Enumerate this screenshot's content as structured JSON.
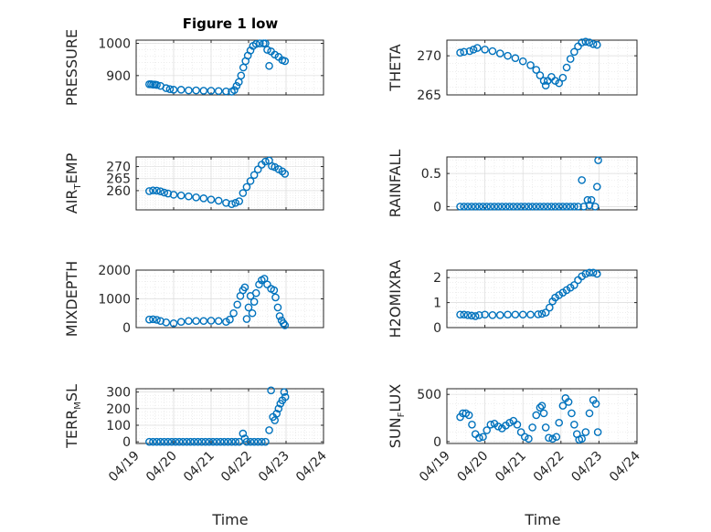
{
  "figure": {
    "title": "Figure 1 low",
    "xlabel": "Time",
    "marker_color": "#0072bd"
  },
  "chart_data": [
    {
      "type": "scatter",
      "ylabel": {
        "main": "PRESSURE",
        "sub": "",
        "tail": ""
      },
      "ylim": [
        840,
        1010
      ],
      "yticks": [
        {
          "v": 900,
          "t": "900"
        },
        {
          "v": 1000,
          "t": "1000"
        }
      ],
      "xlim": [
        0,
        5
      ],
      "xtick_positions": [
        0,
        1,
        2,
        3,
        4,
        5
      ],
      "xticklabels": [],
      "grid": true,
      "points": [
        [
          0.35,
          873
        ],
        [
          0.4,
          873
        ],
        [
          0.45,
          872
        ],
        [
          0.5,
          872
        ],
        [
          0.55,
          871
        ],
        [
          0.65,
          868
        ],
        [
          0.8,
          861
        ],
        [
          0.9,
          858
        ],
        [
          1.0,
          856
        ],
        [
          1.2,
          856
        ],
        [
          1.4,
          854
        ],
        [
          1.6,
          854
        ],
        [
          1.8,
          853
        ],
        [
          2.0,
          853
        ],
        [
          2.2,
          852
        ],
        [
          2.4,
          851
        ],
        [
          2.55,
          850
        ],
        [
          2.62,
          855
        ],
        [
          2.68,
          868
        ],
        [
          2.74,
          880
        ],
        [
          2.8,
          900
        ],
        [
          2.86,
          925
        ],
        [
          2.92,
          945
        ],
        [
          2.98,
          962
        ],
        [
          3.05,
          978
        ],
        [
          3.12,
          992
        ],
        [
          3.2,
          998
        ],
        [
          3.3,
          1000
        ],
        [
          3.4,
          1000
        ],
        [
          3.45,
          1000
        ],
        [
          3.5,
          980
        ],
        [
          3.55,
          930
        ],
        [
          3.6,
          975
        ],
        [
          3.7,
          965
        ],
        [
          3.8,
          958
        ],
        [
          3.9,
          948
        ],
        [
          3.97,
          945
        ]
      ]
    },
    {
      "type": "scatter",
      "ylabel": {
        "main": "THETA",
        "sub": "",
        "tail": ""
      },
      "ylim": [
        265,
        272
      ],
      "yticks": [
        {
          "v": 265,
          "t": "265"
        },
        {
          "v": 270,
          "t": "270"
        }
      ],
      "xlim": [
        0,
        5
      ],
      "xtick_positions": [
        0,
        1,
        2,
        3,
        4,
        5
      ],
      "xticklabels": [],
      "grid": true,
      "points": [
        [
          0.35,
          270.4
        ],
        [
          0.45,
          270.5
        ],
        [
          0.6,
          270.6
        ],
        [
          0.7,
          270.8
        ],
        [
          0.8,
          271.0
        ],
        [
          1.0,
          270.8
        ],
        [
          1.2,
          270.6
        ],
        [
          1.4,
          270.3
        ],
        [
          1.6,
          270.0
        ],
        [
          1.8,
          269.7
        ],
        [
          2.0,
          269.3
        ],
        [
          2.2,
          268.8
        ],
        [
          2.35,
          268.2
        ],
        [
          2.45,
          267.5
        ],
        [
          2.55,
          266.8
        ],
        [
          2.6,
          266.2
        ],
        [
          2.65,
          266.8
        ],
        [
          2.75,
          267.3
        ],
        [
          2.85,
          266.8
        ],
        [
          2.95,
          266.5
        ],
        [
          3.05,
          267.2
        ],
        [
          3.15,
          268.5
        ],
        [
          3.25,
          269.6
        ],
        [
          3.35,
          270.5
        ],
        [
          3.45,
          271.2
        ],
        [
          3.55,
          271.7
        ],
        [
          3.65,
          271.8
        ],
        [
          3.75,
          271.7
        ],
        [
          3.85,
          271.5
        ],
        [
          3.95,
          271.4
        ]
      ]
    },
    {
      "type": "scatter",
      "ylabel": {
        "main": "AIR",
        "sub": "T",
        "tail": "EMP"
      },
      "ylim": [
        252,
        274
      ],
      "yticks": [
        {
          "v": 260,
          "t": "260"
        },
        {
          "v": 265,
          "t": "265"
        },
        {
          "v": 270,
          "t": "270"
        }
      ],
      "xlim": [
        0,
        5
      ],
      "xtick_positions": [
        0,
        1,
        2,
        3,
        4,
        5
      ],
      "xticklabels": [],
      "grid": true,
      "points": [
        [
          0.35,
          259.8
        ],
        [
          0.45,
          260.1
        ],
        [
          0.55,
          260.0
        ],
        [
          0.65,
          259.7
        ],
        [
          0.75,
          259.2
        ],
        [
          0.85,
          258.8
        ],
        [
          1.0,
          258.3
        ],
        [
          1.2,
          258.0
        ],
        [
          1.4,
          257.6
        ],
        [
          1.6,
          257.2
        ],
        [
          1.8,
          256.8
        ],
        [
          2.0,
          256.3
        ],
        [
          2.2,
          255.8
        ],
        [
          2.4,
          254.9
        ],
        [
          2.55,
          254.4
        ],
        [
          2.65,
          254.9
        ],
        [
          2.75,
          255.6
        ],
        [
          2.85,
          259.0
        ],
        [
          2.95,
          261.5
        ],
        [
          3.05,
          264.0
        ],
        [
          3.15,
          266.5
        ],
        [
          3.25,
          268.8
        ],
        [
          3.35,
          270.8
        ],
        [
          3.45,
          272.1
        ],
        [
          3.55,
          272.5
        ],
        [
          3.62,
          270.2
        ],
        [
          3.7,
          269.8
        ],
        [
          3.8,
          268.9
        ],
        [
          3.9,
          268.0
        ],
        [
          3.97,
          267.0
        ]
      ]
    },
    {
      "type": "scatter",
      "ylabel": {
        "main": "RAINFALL",
        "sub": "",
        "tail": ""
      },
      "ylim": [
        -0.05,
        0.75
      ],
      "yticks": [
        {
          "v": 0,
          "t": "0"
        },
        {
          "v": 0.5,
          "t": "0.5"
        }
      ],
      "xlim": [
        0,
        5
      ],
      "xtick_positions": [
        0,
        1,
        2,
        3,
        4,
        5
      ],
      "xticklabels": [],
      "grid": true,
      "points": [
        [
          0.35,
          0
        ],
        [
          0.45,
          0
        ],
        [
          0.55,
          0
        ],
        [
          0.65,
          0
        ],
        [
          0.75,
          0
        ],
        [
          0.85,
          0
        ],
        [
          0.95,
          0
        ],
        [
          1.05,
          0
        ],
        [
          1.15,
          0
        ],
        [
          1.25,
          0
        ],
        [
          1.35,
          0
        ],
        [
          1.45,
          0
        ],
        [
          1.55,
          0
        ],
        [
          1.65,
          0
        ],
        [
          1.75,
          0
        ],
        [
          1.85,
          0
        ],
        [
          1.95,
          0
        ],
        [
          2.05,
          0
        ],
        [
          2.15,
          0
        ],
        [
          2.25,
          0
        ],
        [
          2.35,
          0
        ],
        [
          2.45,
          0
        ],
        [
          2.55,
          0
        ],
        [
          2.65,
          0
        ],
        [
          2.75,
          0
        ],
        [
          2.85,
          0
        ],
        [
          2.95,
          0
        ],
        [
          3.05,
          0
        ],
        [
          3.15,
          0
        ],
        [
          3.25,
          0
        ],
        [
          3.35,
          0
        ],
        [
          3.45,
          0
        ],
        [
          3.55,
          0.4
        ],
        [
          3.6,
          0
        ],
        [
          3.7,
          0.1
        ],
        [
          3.75,
          0.02
        ],
        [
          3.8,
          0.1
        ],
        [
          3.9,
          0
        ],
        [
          3.95,
          0.3
        ],
        [
          3.98,
          0.7
        ]
      ]
    },
    {
      "type": "scatter",
      "ylabel": {
        "main": "MIXDEPTH",
        "sub": "",
        "tail": ""
      },
      "ylim": [
        0,
        2000
      ],
      "yticks": [
        {
          "v": 0,
          "t": "0"
        },
        {
          "v": 1000,
          "t": "1000"
        },
        {
          "v": 2000,
          "t": "2000"
        }
      ],
      "xlim": [
        0,
        5
      ],
      "xtick_positions": [
        0,
        1,
        2,
        3,
        4,
        5
      ],
      "xticklabels": [],
      "grid": true,
      "points": [
        [
          0.35,
          280
        ],
        [
          0.45,
          290
        ],
        [
          0.55,
          270
        ],
        [
          0.65,
          230
        ],
        [
          0.8,
          180
        ],
        [
          1.0,
          150
        ],
        [
          1.2,
          200
        ],
        [
          1.4,
          230
        ],
        [
          1.6,
          230
        ],
        [
          1.8,
          230
        ],
        [
          2.0,
          240
        ],
        [
          2.2,
          230
        ],
        [
          2.4,
          200
        ],
        [
          2.5,
          280
        ],
        [
          2.6,
          500
        ],
        [
          2.7,
          800
        ],
        [
          2.78,
          1100
        ],
        [
          2.85,
          1300
        ],
        [
          2.9,
          1400
        ],
        [
          2.95,
          300
        ],
        [
          3.0,
          700
        ],
        [
          3.05,
          1100
        ],
        [
          3.1,
          500
        ],
        [
          3.15,
          900
        ],
        [
          3.2,
          1200
        ],
        [
          3.28,
          1500
        ],
        [
          3.35,
          1650
        ],
        [
          3.42,
          1700
        ],
        [
          3.5,
          1500
        ],
        [
          3.6,
          1350
        ],
        [
          3.68,
          1300
        ],
        [
          3.72,
          1050
        ],
        [
          3.78,
          700
        ],
        [
          3.83,
          400
        ],
        [
          3.88,
          250
        ],
        [
          3.93,
          150
        ],
        [
          3.97,
          80
        ]
      ]
    },
    {
      "type": "scatter",
      "ylabel": {
        "main": "H2OMIXRA",
        "sub": "",
        "tail": ""
      },
      "ylim": [
        0,
        2.3
      ],
      "yticks": [
        {
          "v": 0,
          "t": "0"
        },
        {
          "v": 1,
          "t": "1"
        },
        {
          "v": 2,
          "t": "2"
        }
      ],
      "xlim": [
        0,
        5
      ],
      "xtick_positions": [
        0,
        1,
        2,
        3,
        4,
        5
      ],
      "xticklabels": [],
      "grid": true,
      "points": [
        [
          0.35,
          0.52
        ],
        [
          0.45,
          0.52
        ],
        [
          0.55,
          0.5
        ],
        [
          0.65,
          0.48
        ],
        [
          0.75,
          0.46
        ],
        [
          0.85,
          0.5
        ],
        [
          1.0,
          0.52
        ],
        [
          1.2,
          0.5
        ],
        [
          1.4,
          0.5
        ],
        [
          1.6,
          0.52
        ],
        [
          1.8,
          0.52
        ],
        [
          2.0,
          0.52
        ],
        [
          2.2,
          0.52
        ],
        [
          2.4,
          0.53
        ],
        [
          2.5,
          0.55
        ],
        [
          2.6,
          0.6
        ],
        [
          2.7,
          0.8
        ],
        [
          2.78,
          1.05
        ],
        [
          2.85,
          1.2
        ],
        [
          2.95,
          1.3
        ],
        [
          3.05,
          1.4
        ],
        [
          3.15,
          1.5
        ],
        [
          3.25,
          1.6
        ],
        [
          3.35,
          1.7
        ],
        [
          3.45,
          1.9
        ],
        [
          3.55,
          2.05
        ],
        [
          3.65,
          2.15
        ],
        [
          3.75,
          2.2
        ],
        [
          3.85,
          2.2
        ],
        [
          3.95,
          2.15
        ]
      ]
    },
    {
      "type": "scatter",
      "ylabel": {
        "main": "TERR",
        "sub": "M",
        "tail": "SL"
      },
      "ylim": [
        -10,
        320
      ],
      "yticks": [
        {
          "v": 0,
          "t": "0"
        },
        {
          "v": 100,
          "t": "100"
        },
        {
          "v": 200,
          "t": "200"
        },
        {
          "v": 300,
          "t": "300"
        }
      ],
      "xlim": [
        0,
        5
      ],
      "xtick_positions": [
        0,
        1,
        2,
        3,
        4,
        5
      ],
      "xticklabels": [
        "04/19",
        "04/20",
        "04/21",
        "04/22",
        "04/23",
        "04/24"
      ],
      "grid": true,
      "points": [
        [
          0.35,
          0
        ],
        [
          0.45,
          0
        ],
        [
          0.55,
          0
        ],
        [
          0.65,
          0
        ],
        [
          0.75,
          0
        ],
        [
          0.85,
          0
        ],
        [
          0.95,
          0
        ],
        [
          1.05,
          0
        ],
        [
          1.15,
          0
        ],
        [
          1.25,
          0
        ],
        [
          1.35,
          0
        ],
        [
          1.45,
          0
        ],
        [
          1.55,
          0
        ],
        [
          1.65,
          0
        ],
        [
          1.75,
          0
        ],
        [
          1.85,
          0
        ],
        [
          1.95,
          0
        ],
        [
          2.05,
          0
        ],
        [
          2.15,
          0
        ],
        [
          2.25,
          0
        ],
        [
          2.35,
          0
        ],
        [
          2.45,
          0
        ],
        [
          2.55,
          0
        ],
        [
          2.65,
          0
        ],
        [
          2.75,
          0
        ],
        [
          2.85,
          50
        ],
        [
          2.9,
          20
        ],
        [
          2.95,
          0
        ],
        [
          3.05,
          0
        ],
        [
          3.15,
          0
        ],
        [
          3.25,
          0
        ],
        [
          3.35,
          0
        ],
        [
          3.45,
          0
        ],
        [
          3.55,
          70
        ],
        [
          3.6,
          310
        ],
        [
          3.65,
          150
        ],
        [
          3.7,
          130
        ],
        [
          3.75,
          170
        ],
        [
          3.8,
          200
        ],
        [
          3.85,
          230
        ],
        [
          3.9,
          250
        ],
        [
          3.95,
          300
        ],
        [
          3.98,
          270
        ]
      ]
    },
    {
      "type": "scatter",
      "ylabel": {
        "main": "SUN",
        "sub": "F",
        "tail": "LUX"
      },
      "ylim": [
        -20,
        560
      ],
      "yticks": [
        {
          "v": 0,
          "t": "0"
        },
        {
          "v": 500,
          "t": "500"
        }
      ],
      "xlim": [
        0,
        5
      ],
      "xtick_positions": [
        0,
        1,
        2,
        3,
        4,
        5
      ],
      "xticklabels": [
        "04/19",
        "04/20",
        "04/21",
        "04/22",
        "04/23",
        "04/24"
      ],
      "grid": true,
      "points": [
        [
          0.35,
          260
        ],
        [
          0.42,
          300
        ],
        [
          0.5,
          300
        ],
        [
          0.58,
          280
        ],
        [
          0.66,
          180
        ],
        [
          0.75,
          80
        ],
        [
          0.85,
          40
        ],
        [
          0.95,
          50
        ],
        [
          1.05,
          120
        ],
        [
          1.15,
          180
        ],
        [
          1.25,
          190
        ],
        [
          1.35,
          160
        ],
        [
          1.45,
          140
        ],
        [
          1.55,
          170
        ],
        [
          1.65,
          200
        ],
        [
          1.75,
          220
        ],
        [
          1.85,
          180
        ],
        [
          1.95,
          100
        ],
        [
          2.05,
          50
        ],
        [
          2.15,
          30
        ],
        [
          2.25,
          150
        ],
        [
          2.35,
          280
        ],
        [
          2.45,
          360
        ],
        [
          2.5,
          380
        ],
        [
          2.55,
          300
        ],
        [
          2.6,
          150
        ],
        [
          2.68,
          40
        ],
        [
          2.78,
          30
        ],
        [
          2.88,
          50
        ],
        [
          2.95,
          200
        ],
        [
          3.05,
          380
        ],
        [
          3.12,
          460
        ],
        [
          3.2,
          420
        ],
        [
          3.28,
          300
        ],
        [
          3.35,
          180
        ],
        [
          3.42,
          80
        ],
        [
          3.48,
          20
        ],
        [
          3.55,
          30
        ],
        [
          3.65,
          100
        ],
        [
          3.75,
          300
        ],
        [
          3.85,
          440
        ],
        [
          3.92,
          400
        ],
        [
          3.97,
          100
        ]
      ]
    }
  ]
}
